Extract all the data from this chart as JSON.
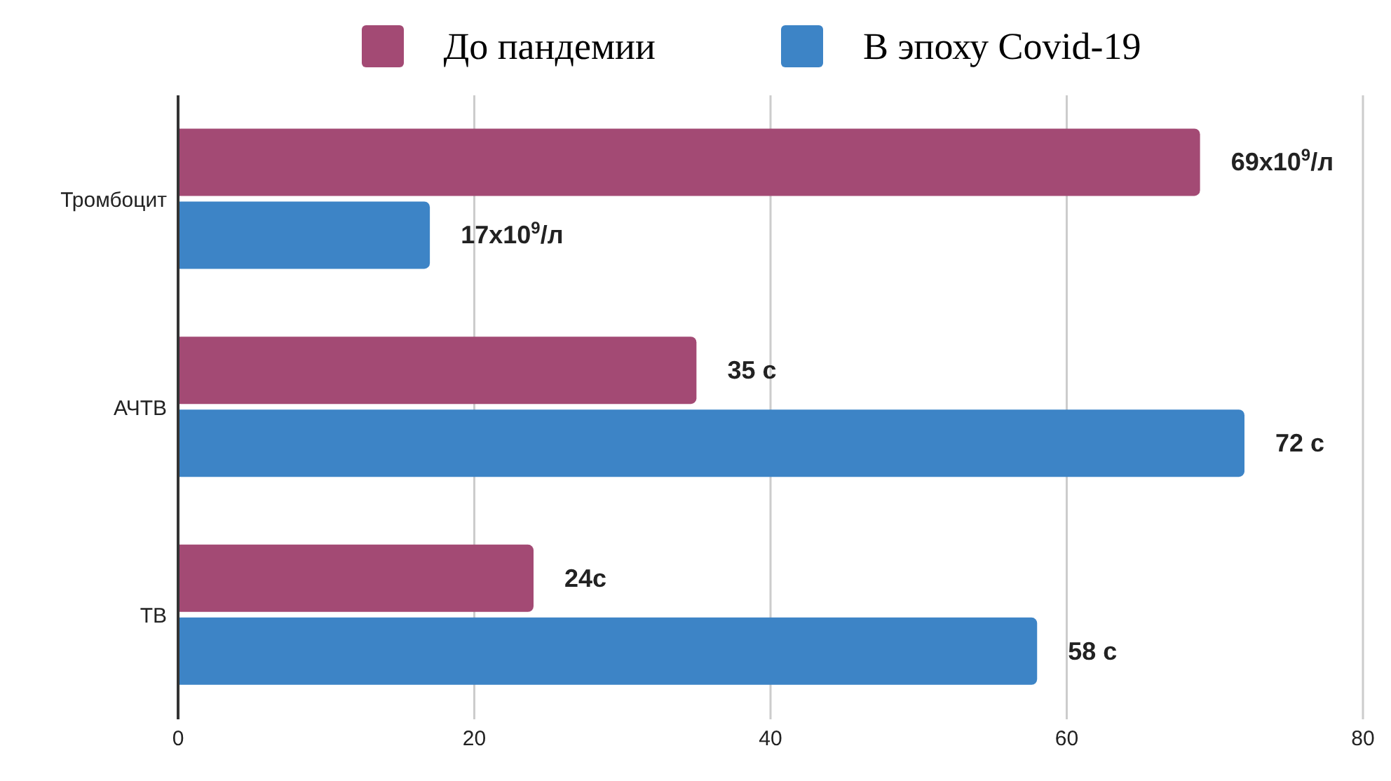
{
  "chart_data": {
    "type": "bar",
    "orientation": "horizontal",
    "categories": [
      "Тромбоцит",
      "АЧТВ",
      "ТВ"
    ],
    "series": [
      {
        "name": "До пандемии",
        "color": "#a34a74",
        "values": [
          69,
          35,
          24
        ],
        "value_labels": [
          "69x10$^{9}$/л",
          "35 с",
          "24с"
        ]
      },
      {
        "name": "В эпоху Covid-19",
        "color": "#3d84c6",
        "values": [
          17,
          72,
          58
        ],
        "value_labels": [
          "17x10$^{9}$/л",
          "72 с",
          "58 с"
        ]
      }
    ],
    "xlim": [
      0,
      80
    ],
    "xticks": [
      0,
      20,
      40,
      60,
      80
    ],
    "grid": "x",
    "legend": "top"
  }
}
